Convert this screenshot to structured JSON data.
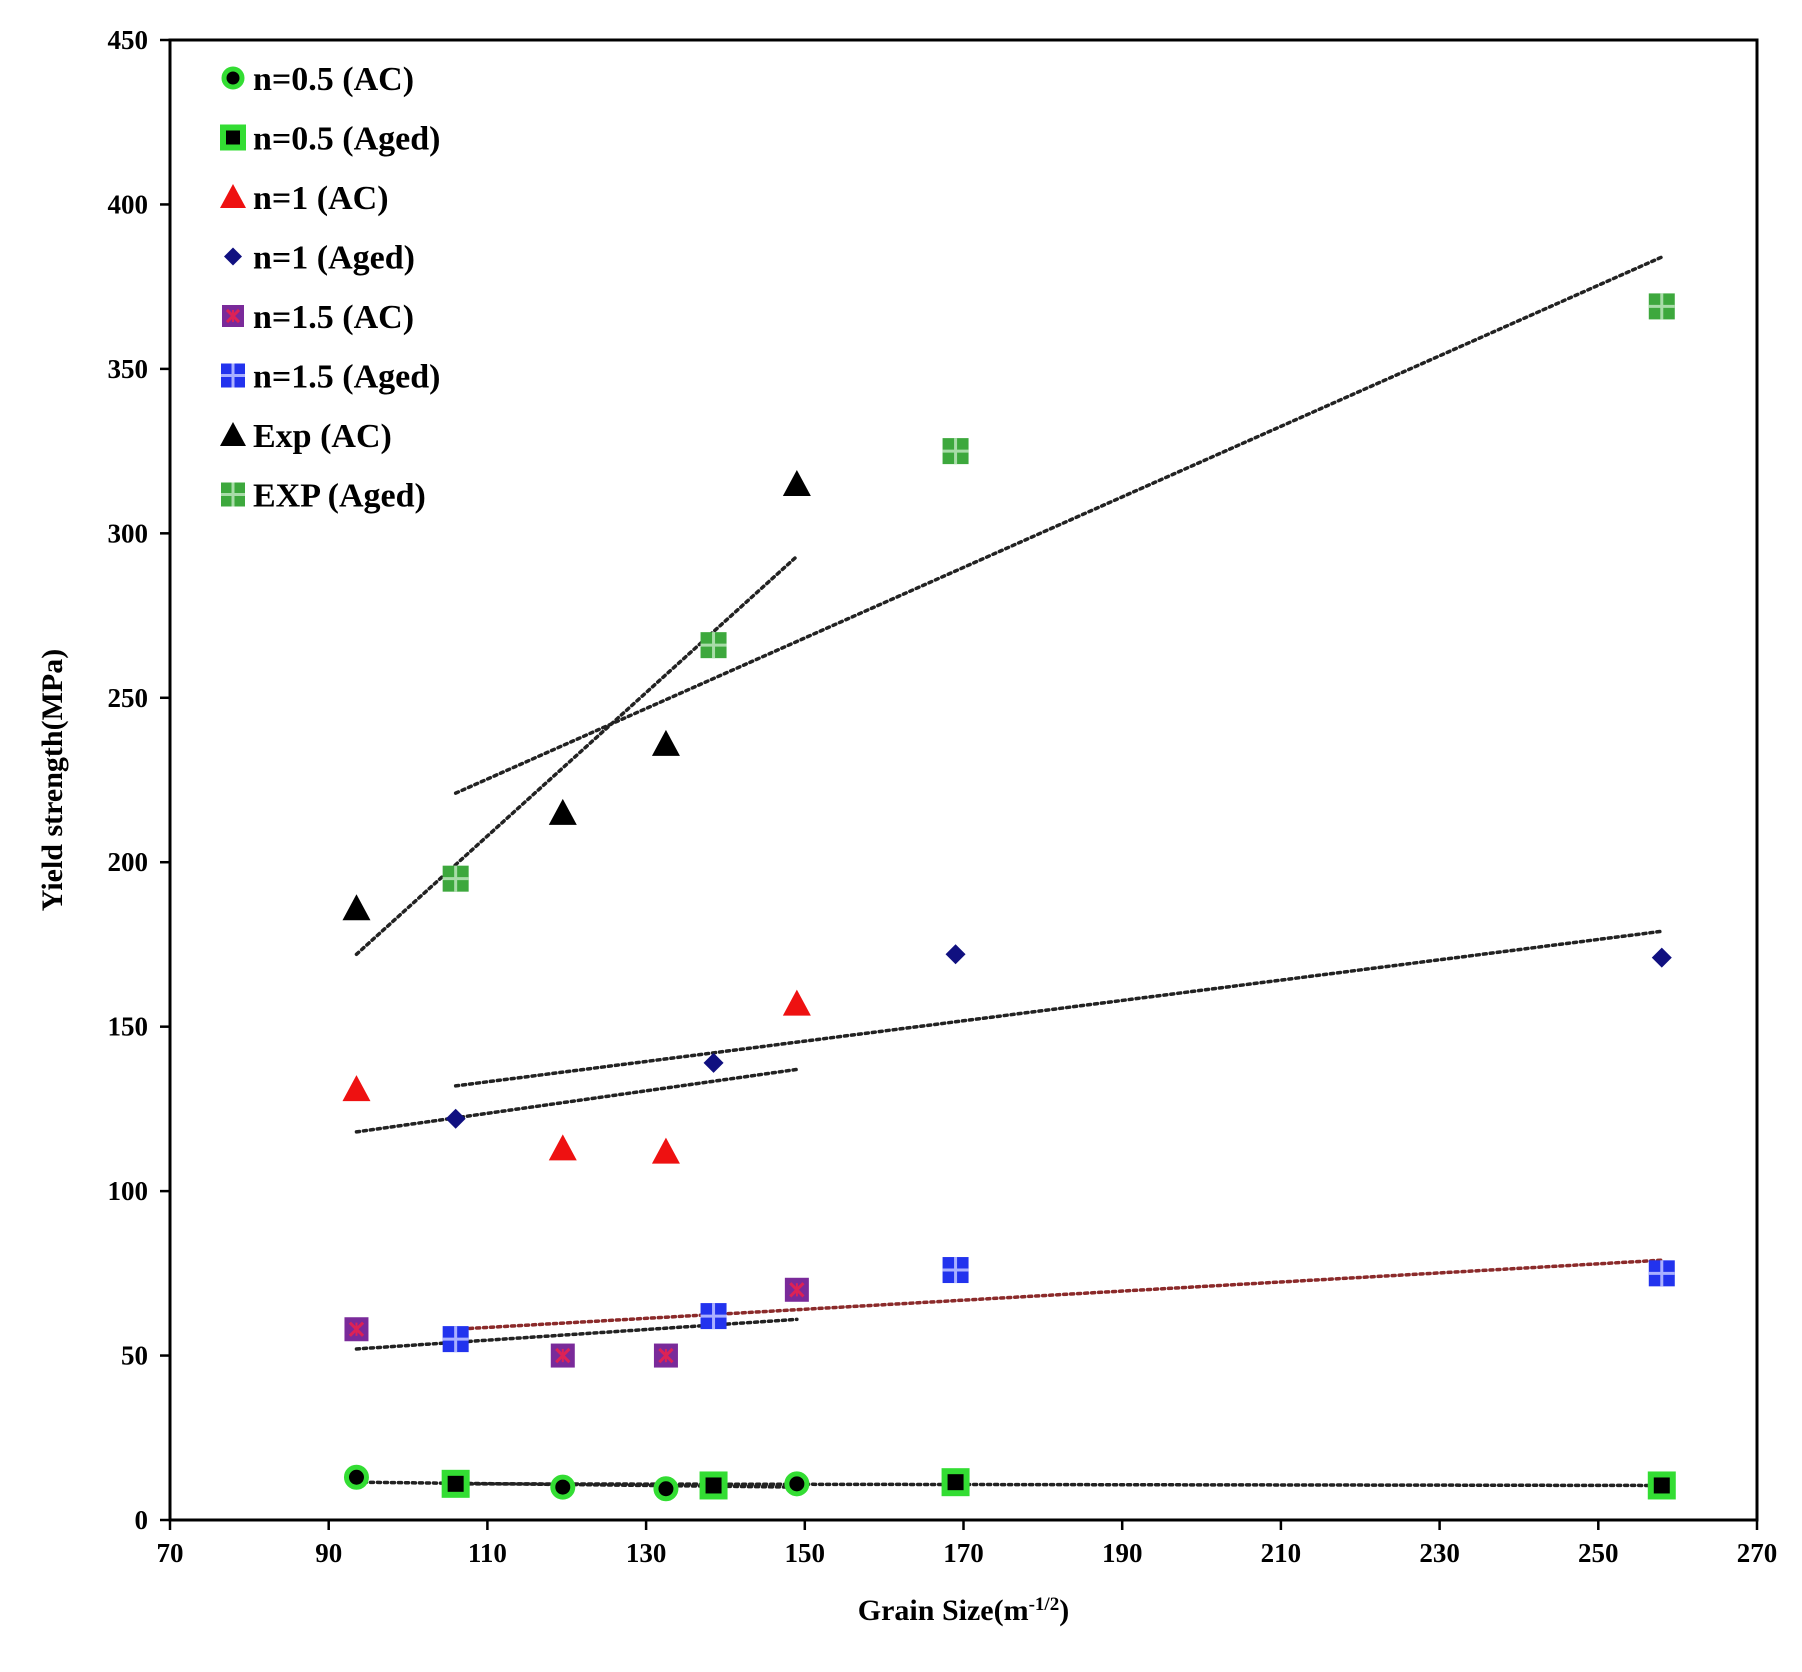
{
  "chart_data": {
    "type": "scatter",
    "title": "",
    "xlabel": "Grain Size(m",
    "xlabel_sup": "-1/2",
    "xlabel_close": ")",
    "ylabel": "Yield strength(MPa)",
    "xlim": [
      70,
      270
    ],
    "ylim": [
      0,
      450
    ],
    "xticks": [
      "70",
      "90",
      "110",
      "130",
      "150",
      "170",
      "190",
      "210",
      "230",
      "250",
      "270"
    ],
    "yticks": [
      "0",
      "50",
      "100",
      "150",
      "200",
      "250",
      "300",
      "350",
      "400",
      "450"
    ],
    "grid": false,
    "legend_position": "top-left",
    "series": [
      {
        "name": "n=0.5 (AC)",
        "marker": "circle",
        "fill": "#000000",
        "edge": "#33dd33",
        "x": [
          93.5,
          119.5,
          132.5,
          149
        ],
        "y": [
          13,
          10,
          9.5,
          11
        ]
      },
      {
        "name": "n=0.5 (Aged)",
        "marker": "square",
        "fill": "#000000",
        "edge": "#33dd33",
        "x": [
          106,
          138.5,
          169,
          258
        ],
        "y": [
          11,
          10.5,
          11.5,
          10.5
        ]
      },
      {
        "name": "n=1 (AC)",
        "marker": "triangle",
        "fill": "#ee1111",
        "edge": "#ee1111",
        "x": [
          93.5,
          119.5,
          132.5,
          149
        ],
        "y": [
          131,
          113,
          112,
          157
        ]
      },
      {
        "name": "n=1 (Aged)",
        "marker": "diamond",
        "fill": "#101080",
        "edge": "#101080",
        "x": [
          106,
          138.5,
          169,
          258
        ],
        "y": [
          122,
          139,
          172,
          171
        ]
      },
      {
        "name": "n=1.5 (AC)",
        "marker": "square-x",
        "fill": "#7a2a9a",
        "edge": "#dd2255",
        "x": [
          93.5,
          119.5,
          132.5,
          149
        ],
        "y": [
          58,
          50,
          50,
          70
        ]
      },
      {
        "name": "n=1.5 (Aged)",
        "marker": "square-plus",
        "fill": "#2233ee",
        "edge": "#aab0ff",
        "x": [
          106,
          138.5,
          169,
          258
        ],
        "y": [
          55,
          62,
          76,
          75
        ]
      },
      {
        "name": "Exp (AC)",
        "marker": "triangle",
        "fill": "#000000",
        "edge": "#000000",
        "x": [
          93.5,
          119.5,
          132.5,
          149
        ],
        "y": [
          186,
          215,
          236,
          315
        ]
      },
      {
        "name": "EXP (Aged)",
        "marker": "square-plus",
        "fill": "#3da83d",
        "edge": "#a8dca8",
        "x": [
          106,
          138.5,
          169,
          258
        ],
        "y": [
          195,
          266,
          325,
          369
        ]
      }
    ],
    "trendlines": [
      {
        "name": "trend-exp-ac",
        "color": "#222222",
        "x": [
          93.5,
          149
        ],
        "y": [
          172,
          293
        ]
      },
      {
        "name": "trend-exp-aged",
        "color": "#222222",
        "x": [
          106,
          258
        ],
        "y": [
          221,
          384
        ]
      },
      {
        "name": "trend-n1-aged",
        "color": "#222222",
        "x": [
          106,
          258
        ],
        "y": [
          132,
          179
        ]
      },
      {
        "name": "trend-n1-ac",
        "color": "#222222",
        "x": [
          93.5,
          149
        ],
        "y": [
          118,
          137
        ]
      },
      {
        "name": "trend-n15-aged",
        "color": "#8b2a2a",
        "x": [
          106,
          258
        ],
        "y": [
          58,
          79
        ]
      },
      {
        "name": "trend-n15-ac",
        "color": "#222222",
        "x": [
          93.5,
          149
        ],
        "y": [
          52,
          61
        ]
      },
      {
        "name": "trend-n05-ac",
        "color": "#222222",
        "x": [
          93.5,
          149
        ],
        "y": [
          11.5,
          10
        ]
      },
      {
        "name": "trend-n05-aged",
        "color": "#222222",
        "x": [
          106,
          258
        ],
        "y": [
          11,
          10.5
        ]
      }
    ]
  }
}
